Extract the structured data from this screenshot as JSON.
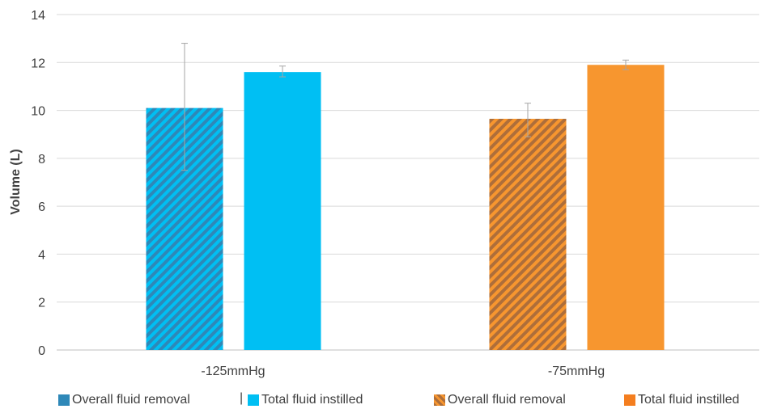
{
  "chart_data": {
    "type": "bar",
    "categories": [
      "-125mmHg",
      "-75mmHg"
    ],
    "ylabel": "Volume (L)",
    "ylim": [
      0,
      14
    ],
    "yticks": [
      0,
      2,
      4,
      6,
      8,
      10,
      12,
      14
    ],
    "grid": true,
    "legend_position": "bottom",
    "bars": [
      {
        "category": "-125mmHg",
        "series": "Overall fluid removal",
        "value": 10.1,
        "error_low": 7.5,
        "error_high": 12.8,
        "color": "#2E88B8",
        "stripe": "#00BFF3",
        "hatched": true
      },
      {
        "category": "-125mmHg",
        "series": "Total fluid instilled",
        "value": 11.6,
        "error_low": 11.4,
        "error_high": 11.85,
        "color": "#00BFF3",
        "hatched": false
      },
      {
        "category": "-75mmHg",
        "series": "Overall fluid removal",
        "value": 9.65,
        "error_low": 8.9,
        "error_high": 10.3,
        "color": "#AE6E3A",
        "stripe": "#F7962F",
        "hatched": true
      },
      {
        "category": "-75mmHg",
        "series": "Total fluid instilled",
        "value": 11.9,
        "error_low": 11.7,
        "error_high": 12.1,
        "color": "#F7962F",
        "hatched": false
      }
    ],
    "legend": [
      {
        "label": "Overall fluid removal",
        "color": "#2E88B8"
      },
      {
        "label": "Total fluid instilled",
        "color": "#00BFF3"
      },
      {
        "label": "Overall fluid removal",
        "color": "#AE6E3A"
      },
      {
        "label": "Total fluid instilled",
        "color": "#F47E1F"
      }
    ],
    "legend_separator": "|"
  }
}
